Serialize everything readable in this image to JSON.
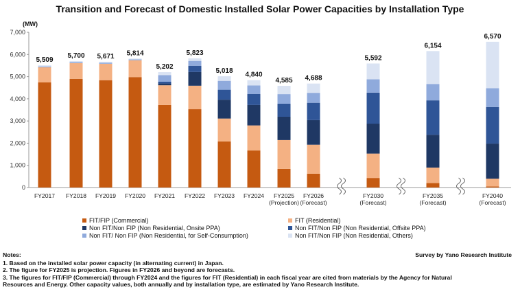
{
  "chart_data": {
    "type": "bar",
    "stacked": true,
    "title": "Transition and Forecast of Domestic Installed Solar Power Capacities by Installation Type",
    "ylabel": "(MW)",
    "ylim": [
      0,
      7000
    ],
    "yticks": [
      "0",
      "1,000",
      "2,000",
      "3,000",
      "4,000",
      "5,000",
      "6,000",
      "7,000"
    ],
    "ytick_values": [
      0,
      1000,
      2000,
      3000,
      4000,
      5000,
      6000,
      7000
    ],
    "grid": false,
    "legend_position": "bottom",
    "categories": [
      [
        "FY2017"
      ],
      [
        "FY2018"
      ],
      [
        "FY2019"
      ],
      [
        "FY2020"
      ],
      [
        "FY2021"
      ],
      [
        "FY2022"
      ],
      [
        "FY2023"
      ],
      [
        "FY2024"
      ],
      [
        "FY2025",
        "(Projection)"
      ],
      [
        "FY2026",
        "(Forecast)"
      ],
      [
        "FY2030",
        "(Forecast)"
      ],
      [
        "FY2035",
        "(Forecast)"
      ],
      [
        "FY2040",
        "(Forecast)"
      ]
    ],
    "totals": [
      "5,509",
      "5,700",
      "5,671",
      "5,814",
      "5,202",
      "5,823",
      "5,018",
      "4,840",
      "4,585",
      "4,688",
      "5,592",
      "6,154",
      "6,570"
    ],
    "total_values": [
      5509,
      5700,
      5671,
      5814,
      5202,
      5823,
      5018,
      4840,
      4585,
      4688,
      5592,
      6154,
      6570
    ],
    "series": [
      {
        "name": "FIT/FIP (Commercial)",
        "color": "#c55a11",
        "values": [
          4740,
          4900,
          4840,
          4980,
          3720,
          3530,
          2080,
          1670,
          840,
          620,
          430,
          200,
          50
        ]
      },
      {
        "name": "FIT (Residential)",
        "color": "#f4b183",
        "values": [
          680,
          710,
          740,
          760,
          890,
          1060,
          1030,
          1130,
          1300,
          1310,
          1100,
          700,
          350
        ]
      },
      {
        "name": "Non FIT/Non FIP (Non Residential, Onsite PPA)",
        "color": "#1f3864",
        "values": [
          0,
          0,
          0,
          0,
          80,
          620,
          850,
          920,
          1050,
          1110,
          1350,
          1480,
          1580
        ]
      },
      {
        "name": "Non FIT/Non FIP (Non Residential, Offsite PPA)",
        "color": "#2f5597",
        "values": [
          0,
          0,
          0,
          0,
          80,
          280,
          450,
          500,
          590,
          780,
          1400,
          1550,
          1650
        ]
      },
      {
        "name": "Non FIT/ Non FIP (Non Residential, for Self-Consumption)",
        "color": "#8faadc",
        "values": [
          40,
          50,
          50,
          40,
          300,
          220,
          400,
          380,
          430,
          450,
          600,
          740,
          850
        ]
      },
      {
        "name": "Non FIT/Non FIP (Non Residential, Others)",
        "color": "#dae3f3",
        "values": [
          49,
          40,
          41,
          34,
          132,
          113,
          208,
          240,
          375,
          418,
          712,
          1484,
          2090
        ]
      }
    ],
    "axis_break_between": [
      [
        9,
        10
      ],
      [
        10,
        11
      ],
      [
        11,
        12
      ]
    ]
  },
  "notes": {
    "heading": "Notes:",
    "survey": "Survey by Yano Research Institute",
    "lines": [
      "1. Based on the installed solar power capacity (in alternating current) in Japan.",
      "2. The figure for FY2025 is projection. Figures in FY2026 and beyond are forecasts.",
      "3. The figures for FIT/FIP (Commercial) through FY2024 and the figures for FIT (Residential) in each fiscal year are cited from materials by the Agency for Natural",
      "Resources and Energy.  Other capacity values, both annually and by installation type, are estimated by Yano Research Institute."
    ]
  }
}
